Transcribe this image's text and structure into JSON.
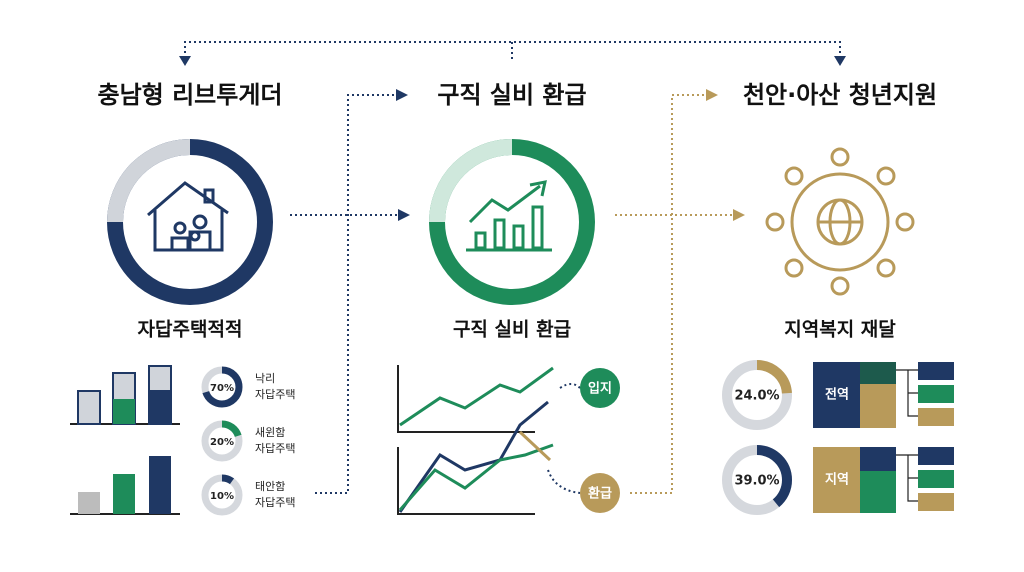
{
  "titles": [
    "충남형 리브투게더",
    "구직 실비 환급",
    "천안·아산 청년지원"
  ],
  "left": {
    "subtitle": "자답주택적적",
    "rings": [
      {
        "value": 70,
        "label": "70%",
        "color": "#1f3864",
        "lines": [
          "낙리",
          "자답주택"
        ]
      },
      {
        "value": 20,
        "label": "20%",
        "color": "#1e8c5a",
        "lines": [
          "새윈함",
          "자답주택"
        ]
      },
      {
        "value": 10,
        "label": "10%",
        "color": "#1f3864",
        "lines": [
          "태안함",
          "자답주택"
        ]
      }
    ]
  },
  "middle": {
    "subtitle": "구직 실비 환급",
    "nodes": [
      "입지",
      "환급"
    ]
  },
  "right": {
    "subtitle": "지역복지 재달",
    "rings": [
      {
        "value": 24,
        "label": "24.0%",
        "color": "#b89a5a",
        "box": "전역"
      },
      {
        "value": 39,
        "label": "39.0%",
        "color": "#1f3864",
        "box": "지역"
      }
    ]
  }
}
